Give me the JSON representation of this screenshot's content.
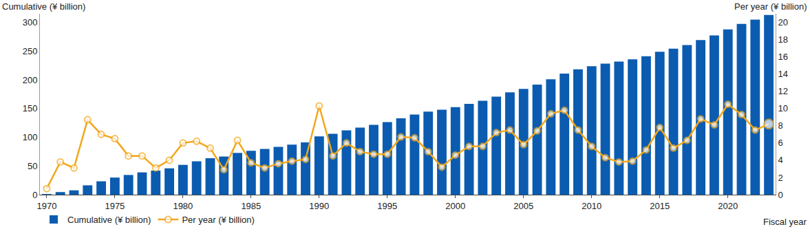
{
  "chart_data": {
    "type": "bar",
    "xlabel": "Fiscal year",
    "ylabel": "Cumulative (¥ billion)",
    "y2label": "Per year (¥ billion)",
    "x": [
      1970,
      1971,
      1972,
      1973,
      1974,
      1975,
      1976,
      1977,
      1978,
      1979,
      1980,
      1981,
      1982,
      1983,
      1984,
      1985,
      1986,
      1987,
      1988,
      1989,
      1990,
      1991,
      1992,
      1993,
      1994,
      1995,
      1996,
      1997,
      1998,
      1999,
      2000,
      2001,
      2002,
      2003,
      2004,
      2005,
      2006,
      2007,
      2008,
      2009,
      2010,
      2011,
      2012,
      2013,
      2014,
      2015,
      2016,
      2017,
      2018,
      2019,
      2020,
      2021,
      2022,
      2023
    ],
    "series": [
      {
        "name": "Cumulative (¥ billion)",
        "type": "bar",
        "color": "#0b5cb0",
        "values": [
          0.7,
          4.5,
          7.6,
          16.3,
          23.3,
          29.8,
          34.3,
          38.8,
          41.9,
          45.9,
          51.9,
          58.1,
          63.5,
          66.4,
          72.7,
          76.4,
          79.5,
          83.1,
          87.0,
          91.1,
          101.4,
          105.9,
          111.9,
          116.9,
          121.6,
          126.3,
          133.0,
          139.6,
          144.6,
          147.8,
          152.4,
          158.0,
          163.6,
          170.8,
          178.3,
          184.1,
          191.5,
          200.9,
          210.7,
          218.2,
          223.8,
          228.1,
          231.9,
          235.8,
          241.0,
          248.8,
          254.2,
          260.5,
          269.3,
          277.4,
          287.9,
          297.2,
          304.7,
          312.9
        ]
      },
      {
        "name": "Per year (¥ billion)",
        "type": "line",
        "axis": "y2",
        "color": "#f2a71b",
        "marker": "circle",
        "values": [
          0.7,
          3.8,
          3.1,
          8.7,
          7.0,
          6.5,
          4.5,
          4.5,
          3.1,
          4.0,
          6.0,
          6.2,
          5.4,
          2.9,
          6.3,
          3.7,
          3.1,
          3.6,
          3.9,
          4.1,
          10.3,
          4.5,
          6.0,
          5.0,
          4.7,
          4.7,
          6.7,
          6.6,
          5.0,
          3.2,
          4.6,
          5.6,
          5.6,
          7.2,
          7.5,
          5.8,
          7.4,
          9.4,
          9.8,
          7.5,
          5.6,
          4.3,
          3.8,
          3.9,
          5.2,
          7.8,
          5.4,
          6.3,
          8.8,
          8.1,
          10.5,
          9.3,
          7.5,
          8.2
        ]
      }
    ],
    "xlim": [
      1969.5,
      2023.5
    ],
    "xticks": [
      1970,
      1975,
      1980,
      1985,
      1990,
      1995,
      2000,
      2005,
      2010,
      2015,
      2020
    ],
    "ylim": [
      0,
      315
    ],
    "yticks": [
      0,
      50,
      100,
      150,
      200,
      250,
      300
    ],
    "y2lim": [
      0,
      21
    ],
    "y2ticks": [
      0,
      2,
      4,
      6,
      8,
      10,
      12,
      14,
      16,
      18,
      20
    ],
    "legend": "bottom left",
    "grid": false
  }
}
